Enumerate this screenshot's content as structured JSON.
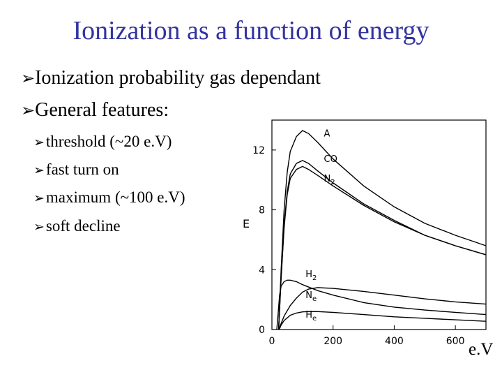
{
  "slide": {
    "title": "Ionization as a function of energy",
    "bullets": [
      "Ionization probability gas dependant",
      "General features:"
    ],
    "sub_bullets": [
      "threshold (~20 e.V)",
      "fast turn on",
      "maximum (~100 e.V)",
      "soft decline"
    ],
    "bullet_glyph": "➢",
    "unit_label": "e.V",
    "colors": {
      "title": "#3333a0",
      "text": "#000000"
    }
  },
  "chart_data": {
    "type": "line",
    "title": "",
    "xlabel": "e.V",
    "ylabel": "E",
    "xlim": [
      0,
      700
    ],
    "ylim": [
      0,
      14
    ],
    "x_ticks": [
      "0",
      "200",
      "400",
      "600"
    ],
    "x_tick_values": [
      0,
      200,
      400,
      600
    ],
    "y_ticks": [
      "0",
      "4",
      "8",
      "12"
    ],
    "y_tick_values": [
      0,
      4,
      8,
      12
    ],
    "grid": false,
    "series": [
      {
        "name": "A",
        "label_sub": "",
        "x": [
          22,
          30,
          40,
          50,
          60,
          80,
          100,
          120,
          150,
          200,
          300,
          400,
          500,
          600,
          700
        ],
        "y": [
          0,
          4,
          8,
          10.5,
          11.9,
          12.9,
          13.3,
          13.1,
          12.5,
          11.4,
          9.6,
          8.2,
          7.1,
          6.3,
          5.6
        ]
      },
      {
        "name": "CO",
        "label_sub": "",
        "x": [
          22,
          30,
          40,
          50,
          60,
          80,
          100,
          120,
          150,
          200,
          300,
          400,
          500,
          600,
          700
        ],
        "y": [
          0,
          3.5,
          7,
          9.2,
          10.4,
          11.1,
          11.3,
          11.1,
          10.6,
          9.8,
          8.4,
          7.3,
          6.3,
          5.6,
          5.0
        ]
      },
      {
        "name": "N",
        "label_sub": "2",
        "x": [
          22,
          30,
          40,
          50,
          60,
          80,
          100,
          120,
          150,
          200,
          300,
          400,
          500,
          600,
          700
        ],
        "y": [
          0,
          3.4,
          6.8,
          9.0,
          10.1,
          10.7,
          10.9,
          10.7,
          10.3,
          9.6,
          8.3,
          7.2,
          6.3,
          5.6,
          5.0
        ]
      },
      {
        "name": "H",
        "label_sub": "2",
        "x": [
          16,
          20,
          25,
          30,
          40,
          50,
          60,
          80,
          100,
          150,
          200,
          300,
          400,
          500,
          600,
          700
        ],
        "y": [
          0,
          1,
          2.3,
          2.9,
          3.2,
          3.3,
          3.3,
          3.2,
          3.0,
          2.6,
          2.3,
          1.8,
          1.5,
          1.3,
          1.15,
          1.0
        ]
      },
      {
        "name": "N",
        "label_sub": "e",
        "x": [
          22,
          30,
          40,
          60,
          80,
          100,
          120,
          150,
          200,
          300,
          400,
          500,
          600,
          700
        ],
        "y": [
          0,
          0.4,
          0.9,
          1.6,
          2.1,
          2.5,
          2.7,
          2.8,
          2.75,
          2.55,
          2.3,
          2.05,
          1.85,
          1.7
        ]
      },
      {
        "name": "H",
        "label_sub": "e",
        "x": [
          24,
          30,
          40,
          60,
          80,
          100,
          120,
          150,
          200,
          300,
          400,
          500,
          600,
          700
        ],
        "y": [
          0,
          0.3,
          0.6,
          0.95,
          1.1,
          1.18,
          1.2,
          1.2,
          1.15,
          1.0,
          0.85,
          0.75,
          0.65,
          0.55
        ]
      }
    ]
  }
}
